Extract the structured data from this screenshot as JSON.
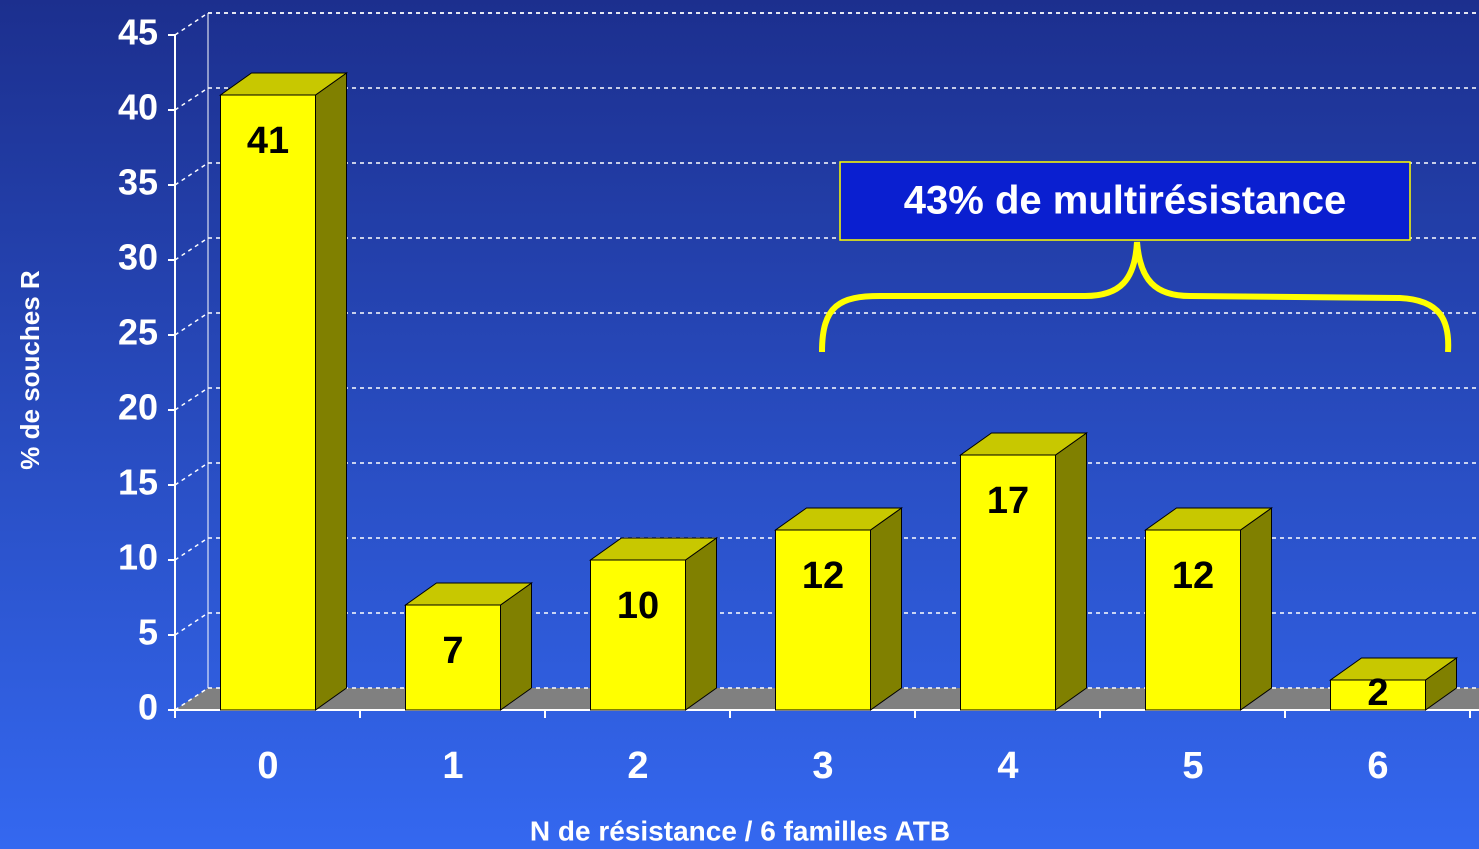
{
  "chart_data": {
    "type": "bar3d",
    "y_label": "% de souches R",
    "x_label": "N de résistance / 6 familles ATB",
    "annotation": "43% de multirésistance",
    "categories": [
      "0",
      "1",
      "2",
      "3",
      "4",
      "5",
      "6"
    ],
    "values": [
      41,
      7,
      10,
      12,
      17,
      12,
      2
    ],
    "color": "#ffff00",
    "ylim": [
      0,
      45
    ],
    "yticks": [
      0,
      5,
      10,
      15,
      20,
      25,
      30,
      35,
      40,
      45
    ],
    "grid": true
  }
}
